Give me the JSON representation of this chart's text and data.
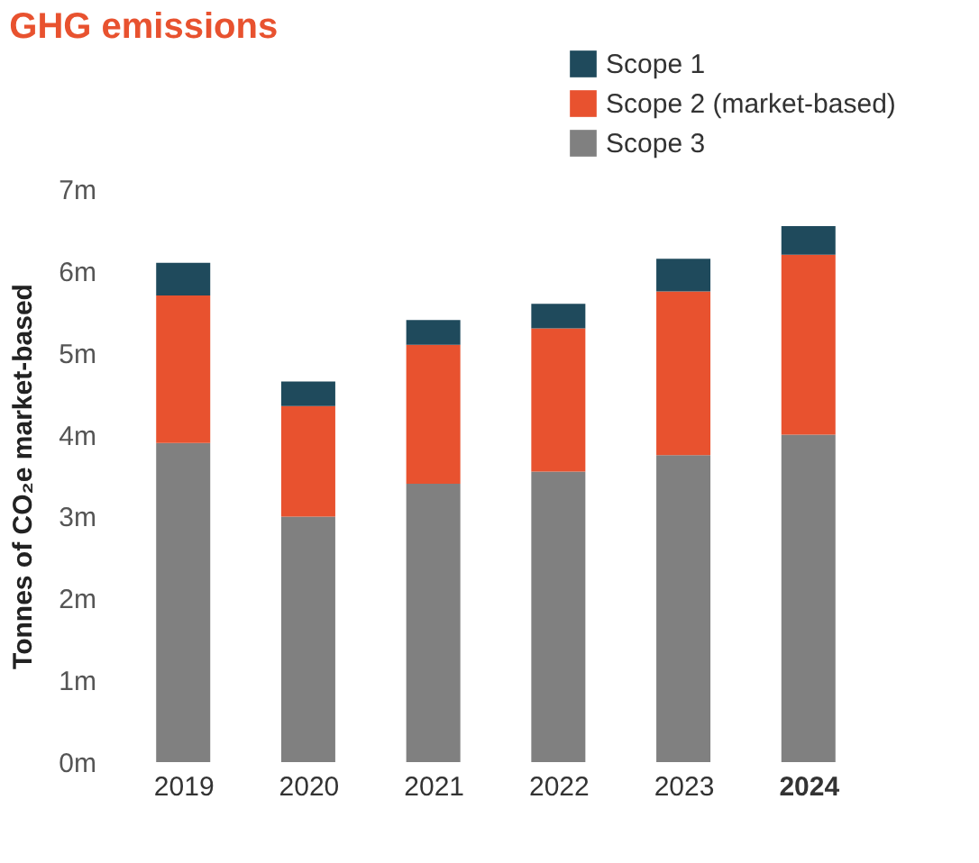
{
  "chart_data": {
    "type": "bar",
    "stacked": true,
    "title": "GHG emissions",
    "ylabel": "Tonnes of CO₂e market-based",
    "categories": [
      "2019",
      "2020",
      "2021",
      "2022",
      "2023",
      "2024"
    ],
    "series": [
      {
        "name": "Scope 3",
        "color": "#808080",
        "values": [
          3.9,
          3.0,
          3.4,
          3.55,
          3.75,
          4.0
        ]
      },
      {
        "name": "Scope 2 (market-based)",
        "color": "#e8522f",
        "values": [
          1.8,
          1.35,
          1.7,
          1.75,
          2.0,
          2.2
        ]
      },
      {
        "name": "Scope 1",
        "color": "#1f4a5c",
        "values": [
          0.4,
          0.3,
          0.3,
          0.3,
          0.4,
          0.35
        ]
      }
    ],
    "ylim": [
      0,
      7
    ],
    "yticks": [
      {
        "value": 0,
        "label": "0m"
      },
      {
        "value": 1,
        "label": "1m"
      },
      {
        "value": 2,
        "label": "2m"
      },
      {
        "value": 3,
        "label": "3m"
      },
      {
        "value": 4,
        "label": "4m"
      },
      {
        "value": 5,
        "label": "5m"
      },
      {
        "value": 6,
        "label": "6m"
      },
      {
        "value": 7,
        "label": "7m"
      }
    ],
    "grid": false,
    "legend": "top right"
  }
}
